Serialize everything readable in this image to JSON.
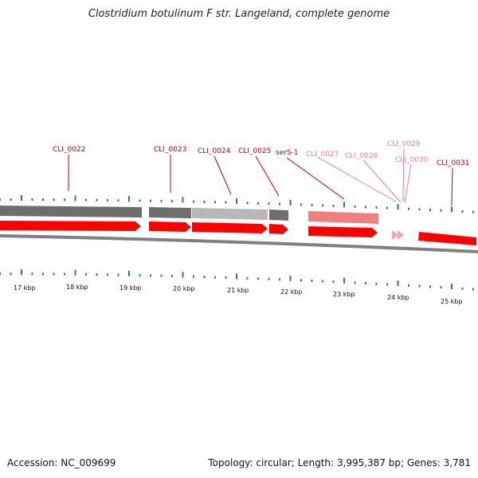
{
  "title": "Clostridium botulinum F str. Langeland, complete genome",
  "footer": {
    "accession": "Accession: NC_009699",
    "summary": "Topology: circular; Length: 3,995,387 bp; Genes: 3,781"
  },
  "colors": {
    "gene_red": "#ff0000",
    "gene_pink": "#f4a0bc",
    "gene_label_red": "#cc0000",
    "gene_label_pink": "#e87aa6",
    "tick_green": "#2e8b2e",
    "track_dark": "#6e6e6e",
    "track_light": "#b8b8b8",
    "track_pink": "#f08080",
    "backbone": "#808080"
  },
  "genes": [
    {
      "label": "CLI_0022",
      "color": "red"
    },
    {
      "label": "CLI_0023",
      "color": "red"
    },
    {
      "label": "CLI_0024",
      "color": "red"
    },
    {
      "label": "CLI_0025",
      "color": "red"
    },
    {
      "label": "serS-1",
      "color": "red"
    },
    {
      "label": "CLI_0027",
      "color": "pink"
    },
    {
      "label": "CLI_0028",
      "color": "pink"
    },
    {
      "label": "CLI_0029",
      "color": "pink"
    },
    {
      "label": "CLI_0030",
      "color": "pink"
    },
    {
      "label": "CLI_0031",
      "color": "red"
    }
  ],
  "kbp_ticks": [
    "17 kbp",
    "18 kbp",
    "19 kbp",
    "20 kbp",
    "21 kbp",
    "22 kbp",
    "23 kbp",
    "24 kbp",
    "25 kbp"
  ]
}
